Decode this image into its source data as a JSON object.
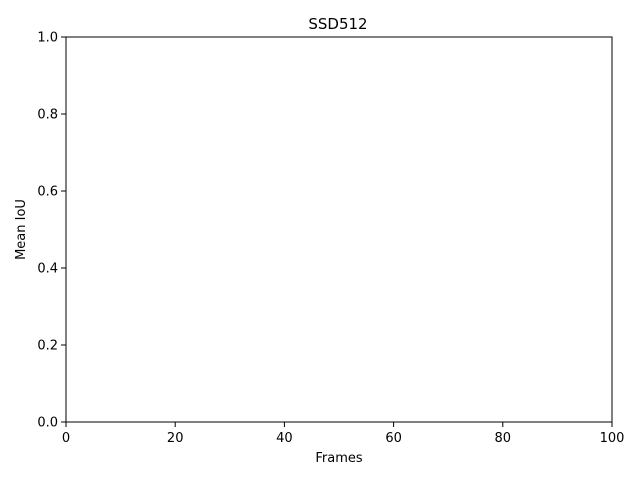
{
  "chart_data": {
    "type": "line",
    "title": "SSD512",
    "xlabel": "Frames",
    "ylabel": "Mean IoU",
    "xlim": [
      0,
      100
    ],
    "ylim": [
      0,
      1
    ],
    "xticks": [
      0,
      20,
      40,
      60,
      80,
      100
    ],
    "yticks": [
      0.0,
      0.2,
      0.4,
      0.6,
      0.8,
      1.0
    ],
    "xtick_labels": [
      "0",
      "20",
      "40",
      "60",
      "80",
      "100"
    ],
    "ytick_labels": [
      "0.0",
      "0.2",
      "0.4",
      "0.6",
      "0.8",
      "1.0"
    ],
    "series": [],
    "grid": false
  }
}
